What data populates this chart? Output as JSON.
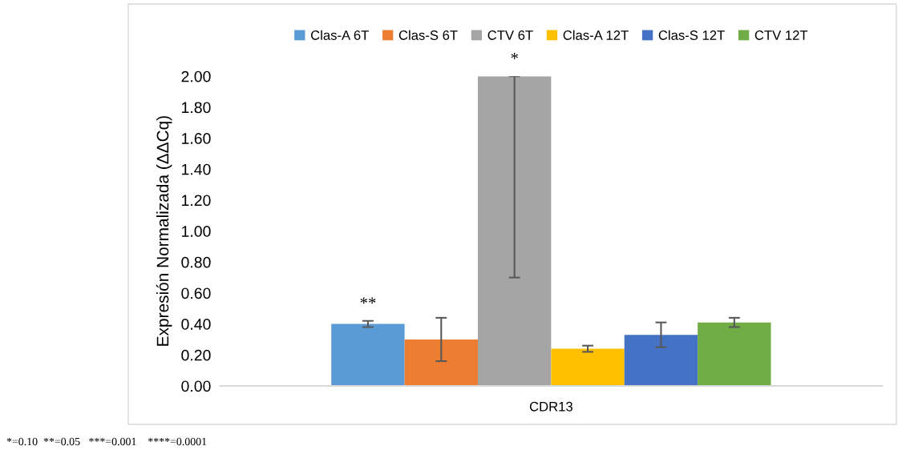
{
  "chart_data": {
    "type": "bar",
    "ylabel": "Expresión Normalizada (ΔΔCq)",
    "categories": [
      "CDR13"
    ],
    "ylim": [
      0,
      2.0
    ],
    "yticks": [
      {
        "value": 0,
        "label": "0.00"
      },
      {
        "value": 0.2,
        "label": "0.20"
      },
      {
        "value": 0.4,
        "label": "0.40"
      },
      {
        "value": 0.6,
        "label": "0.60"
      },
      {
        "value": 0.8,
        "label": "0.80"
      },
      {
        "value": 1.0,
        "label": "1.00"
      },
      {
        "value": 1.2,
        "label": "1.20"
      },
      {
        "value": 1.4,
        "label": "1.40"
      },
      {
        "value": 1.6,
        "label": "1.60"
      },
      {
        "value": 1.8,
        "label": "1.80"
      },
      {
        "value": 2.0,
        "label": "2.00"
      }
    ],
    "grid": false,
    "legend": "top",
    "series": [
      {
        "name": "Clas-A 6T",
        "color": "#5b9bd5",
        "values": [
          0.4
        ],
        "errors": [
          0.02
        ],
        "value_labels": [
          "**"
        ]
      },
      {
        "name": "Clas-S 6T",
        "color": "#ed7d31",
        "values": [
          0.3
        ],
        "errors": [
          0.14
        ]
      },
      {
        "name": "CTV 6T",
        "color": "#a5a5a5",
        "values": [
          2.0
        ],
        "errors": [
          [
            0.7,
            2.0
          ]
        ],
        "value_labels": [
          "*"
        ]
      },
      {
        "name": "Clas-A 12T",
        "color": "#ffc000",
        "values": [
          0.24
        ],
        "errors": [
          0.02
        ]
      },
      {
        "name": "Clas-S 12T",
        "color": "#4472c4",
        "values": [
          0.33
        ],
        "errors": [
          0.08
        ]
      },
      {
        "name": "CTV 12T",
        "color": "#70ad47",
        "values": [
          0.41
        ],
        "errors": [
          0.03
        ]
      }
    ],
    "annotations": [
      "*=0.10  **=0.05   ***=0.001    ****=0.0001"
    ]
  }
}
